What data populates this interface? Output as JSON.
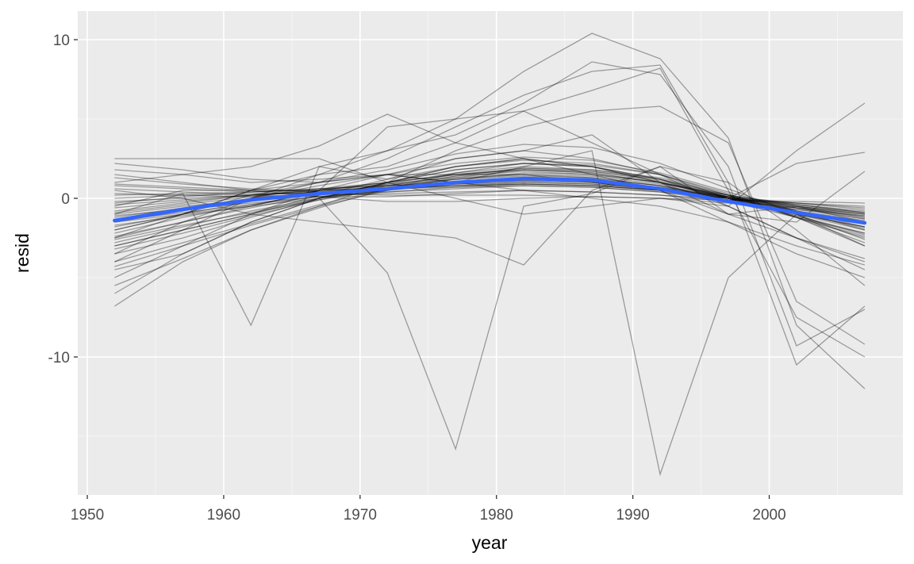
{
  "chart_data": {
    "type": "line",
    "title": "",
    "xlabel": "year",
    "ylabel": "resid",
    "xlim": [
      1949.3,
      2009.8
    ],
    "ylim": [
      -18.7,
      11.8
    ],
    "x_ticks": [
      1950,
      1960,
      1970,
      1980,
      1990,
      2000
    ],
    "y_ticks": [
      -10,
      0,
      10
    ],
    "grid": true,
    "legend": "none",
    "x": [
      1952,
      1957,
      1962,
      1967,
      1972,
      1977,
      1982,
      1987,
      1992,
      1997,
      2002,
      2007
    ],
    "series": [
      {
        "values": [
          -1.0,
          0.3,
          -8.0,
          2.0,
          1.2,
          2.5,
          3.0,
          4.0,
          1.0,
          -1.0,
          -0.5,
          -1.5
        ]
      },
      {
        "values": [
          -3.0,
          -2.0,
          -1.0,
          0.0,
          -4.7,
          -15.8,
          -0.5,
          0.3,
          2.0,
          1.0,
          -2.0,
          -5.5
        ]
      },
      {
        "values": [
          -0.5,
          0.5,
          0.5,
          1.0,
          1.5,
          1.0,
          2.0,
          3.0,
          -17.4,
          -5.0,
          -1.0,
          -3.0
        ]
      },
      {
        "values": [
          -4.0,
          -2.0,
          0.0,
          1.5,
          3.0,
          5.0,
          8.0,
          10.4,
          8.8,
          3.8,
          -8.0,
          -12.0
        ]
      },
      {
        "values": [
          -2.0,
          -1.0,
          0.5,
          2.0,
          3.0,
          4.0,
          6.0,
          8.6,
          7.8,
          2.0,
          -9.3,
          -7.0
        ]
      },
      {
        "values": [
          -3.5,
          -1.5,
          0.0,
          1.0,
          2.5,
          4.5,
          6.5,
          8.0,
          8.4,
          1.0,
          -10.5,
          -6.8
        ]
      },
      {
        "values": [
          -2.5,
          -1.0,
          0.5,
          1.5,
          2.0,
          3.5,
          5.5,
          6.8,
          8.2,
          0.5,
          -7.5,
          -10.0
        ]
      },
      {
        "values": [
          1.0,
          1.5,
          2.0,
          3.3,
          5.3,
          3.5,
          2.5,
          2.0,
          1.0,
          0.0,
          -1.0,
          -2.0
        ]
      },
      {
        "values": [
          -4.5,
          -3.5,
          -1.5,
          0.0,
          1.0,
          3.0,
          4.5,
          5.5,
          5.8,
          3.5,
          -6.5,
          -9.2
        ]
      },
      {
        "values": [
          2.5,
          2.5,
          2.5,
          2.5,
          1.0,
          0.0,
          -1.0,
          -0.5,
          0.0,
          -0.5,
          3.0,
          6.0
        ]
      },
      {
        "values": [
          -1.5,
          -1.0,
          -0.5,
          0.5,
          4.5,
          5.0,
          5.5,
          3.5,
          1.5,
          0.0,
          2.2,
          2.9
        ]
      },
      {
        "values": [
          0.5,
          0.0,
          -1.0,
          -1.5,
          -2.0,
          -2.5,
          -4.2,
          0.5,
          2.0,
          -1.0,
          -1.5,
          1.7
        ]
      },
      {
        "values": [
          -6.8,
          -4.0,
          -2.0,
          -0.5,
          1.0,
          2.0,
          2.5,
          2.0,
          1.0,
          -0.5,
          -2.5,
          -4.0
        ]
      },
      {
        "values": [
          -6.0,
          -3.5,
          -1.5,
          0.0,
          1.0,
          2.0,
          2.5,
          1.5,
          0.5,
          -1.5,
          -3.5,
          -5.0
        ]
      },
      {
        "values": [
          -5.0,
          -3.0,
          -1.0,
          0.5,
          1.5,
          2.5,
          3.0,
          2.5,
          1.5,
          -0.5,
          -2.5,
          -4.5
        ]
      },
      {
        "values": [
          2.2,
          1.8,
          1.2,
          1.0,
          1.5,
          1.0,
          0.5,
          0.0,
          -0.5,
          -1.5,
          -3.0,
          -4.2
        ]
      },
      {
        "values": [
          1.8,
          1.5,
          1.0,
          1.2,
          1.5,
          1.5,
          1.5,
          1.0,
          0.5,
          -1.0,
          -2.5,
          -3.8
        ]
      },
      {
        "values": [
          -2.5,
          -1.5,
          -0.5,
          0.5,
          1.0,
          1.8,
          2.2,
          2.0,
          1.2,
          -0.2,
          -1.2,
          -2.2
        ]
      },
      {
        "values": [
          -1.8,
          -1.0,
          -0.2,
          0.5,
          1.0,
          1.5,
          1.8,
          1.6,
          1.0,
          0.0,
          -1.0,
          -1.8
        ]
      },
      {
        "values": [
          -1.2,
          -0.6,
          0.0,
          0.4,
          0.8,
          1.2,
          1.4,
          1.3,
          0.8,
          0.0,
          -0.8,
          -1.4
        ]
      },
      {
        "values": [
          -0.8,
          -0.3,
          0.2,
          0.5,
          0.7,
          1.0,
          1.2,
          1.1,
          0.7,
          0.1,
          -0.5,
          -1.0
        ]
      },
      {
        "values": [
          -1.5,
          -0.8,
          0.0,
          0.8,
          1.5,
          2.2,
          2.6,
          2.4,
          1.6,
          0.4,
          -0.8,
          -2.0
        ]
      },
      {
        "values": [
          -3.0,
          -2.0,
          -1.0,
          0.2,
          1.2,
          2.0,
          2.4,
          2.2,
          1.5,
          0.2,
          -1.2,
          -2.8
        ]
      },
      {
        "values": [
          0.8,
          0.6,
          0.4,
          0.5,
          0.6,
          0.8,
          0.9,
          0.8,
          0.5,
          0.0,
          -0.4,
          -0.8
        ]
      },
      {
        "values": [
          -0.3,
          0.1,
          0.4,
          0.6,
          0.8,
          0.9,
          1.0,
          0.9,
          0.5,
          -0.1,
          -0.6,
          -1.2
        ]
      },
      {
        "values": [
          -2.2,
          -1.2,
          -0.4,
          0.3,
          0.8,
          1.4,
          1.7,
          1.5,
          1.0,
          0.1,
          -0.9,
          -1.9
        ]
      },
      {
        "values": [
          -4.0,
          -2.8,
          -1.6,
          -0.4,
          0.6,
          1.4,
          1.9,
          1.8,
          1.3,
          0.2,
          -1.2,
          -2.5
        ]
      },
      {
        "values": [
          0.3,
          0.2,
          0.1,
          0.2,
          0.3,
          0.4,
          0.5,
          0.4,
          0.2,
          -0.1,
          -0.3,
          -0.5
        ]
      },
      {
        "values": [
          -1.0,
          -0.5,
          -0.1,
          0.3,
          0.6,
          0.9,
          1.1,
          1.0,
          0.6,
          0.0,
          -0.6,
          -1.1
        ]
      },
      {
        "values": [
          1.3,
          0.9,
          0.6,
          0.4,
          0.4,
          0.6,
          0.8,
          0.7,
          0.4,
          -0.2,
          -0.9,
          -1.6
        ]
      },
      {
        "values": [
          -0.6,
          -0.2,
          0.2,
          0.5,
          0.9,
          1.3,
          1.5,
          1.4,
          0.9,
          0.2,
          -0.4,
          -0.9
        ]
      },
      {
        "values": [
          -3.5,
          -2.5,
          -1.2,
          0.0,
          1.0,
          1.8,
          2.2,
          2.0,
          1.2,
          0.0,
          -1.2,
          -2.4
        ]
      },
      {
        "values": [
          -2.0,
          -1.0,
          0.2,
          1.0,
          1.8,
          2.8,
          3.4,
          3.2,
          2.2,
          0.6,
          -1.0,
          -2.6
        ]
      },
      {
        "values": [
          0.0,
          0.2,
          0.3,
          0.3,
          0.2,
          0.2,
          0.2,
          0.1,
          0.0,
          -0.1,
          -0.2,
          -0.3
        ]
      },
      {
        "values": [
          -1.4,
          -0.9,
          -0.4,
          0.1,
          0.5,
          0.9,
          1.2,
          1.1,
          0.7,
          0.0,
          -0.7,
          -1.3
        ]
      },
      {
        "values": [
          0.6,
          0.4,
          0.2,
          0.1,
          0.1,
          0.3,
          0.5,
          0.4,
          0.2,
          -0.2,
          -0.6,
          -1.0
        ]
      },
      {
        "values": [
          -2.8,
          -1.8,
          -0.8,
          0.0,
          0.7,
          1.2,
          1.5,
          1.3,
          0.8,
          -0.1,
          -1.0,
          -1.8
        ]
      },
      {
        "values": [
          -0.2,
          0.0,
          0.2,
          0.4,
          0.6,
          0.7,
          0.8,
          0.7,
          0.4,
          0.0,
          -0.3,
          -0.6
        ]
      },
      {
        "values": [
          -1.7,
          -1.1,
          -0.5,
          0.0,
          0.5,
          1.0,
          1.3,
          1.2,
          0.8,
          0.1,
          -0.6,
          -1.3
        ]
      },
      {
        "values": [
          -5.5,
          -3.8,
          -2.0,
          -0.6,
          0.6,
          1.6,
          2.2,
          2.1,
          1.5,
          0.3,
          -1.2,
          -3.0
        ]
      },
      {
        "values": [
          1.5,
          1.0,
          0.5,
          0.1,
          -0.2,
          -0.2,
          0.0,
          0.1,
          0.0,
          -0.3,
          -0.7,
          -1.1
        ]
      },
      {
        "values": [
          -0.9,
          -0.4,
          0.1,
          0.6,
          1.0,
          1.5,
          1.8,
          1.6,
          1.0,
          0.2,
          -0.5,
          -1.2
        ]
      },
      {
        "values": [
          -2.4,
          -1.5,
          -0.6,
          0.2,
          0.9,
          1.6,
          2.0,
          1.8,
          1.2,
          0.2,
          -0.8,
          -1.8
        ]
      },
      {
        "values": [
          0.2,
          0.3,
          0.4,
          0.6,
          0.8,
          1.0,
          1.1,
          1.0,
          0.6,
          0.1,
          -0.4,
          -0.9
        ]
      },
      {
        "values": [
          -3.2,
          -2.2,
          -1.1,
          -0.1,
          0.8,
          1.5,
          1.9,
          1.7,
          1.1,
          0.0,
          -1.1,
          -2.2
        ]
      },
      {
        "values": [
          -1.1,
          -0.7,
          -0.3,
          0.1,
          0.4,
          0.7,
          0.9,
          0.8,
          0.5,
          0.0,
          -0.5,
          -0.9
        ]
      },
      {
        "values": [
          0.9,
          0.7,
          0.5,
          0.5,
          0.6,
          0.8,
          0.9,
          0.8,
          0.5,
          0.0,
          -0.5,
          -1.0
        ]
      },
      {
        "values": [
          -4.3,
          -3.0,
          -1.7,
          -0.5,
          0.5,
          1.3,
          1.8,
          1.7,
          1.2,
          0.1,
          -1.1,
          -2.3
        ]
      },
      {
        "values": [
          -0.4,
          -0.1,
          0.2,
          0.4,
          0.6,
          0.8,
          1.0,
          0.9,
          0.6,
          0.1,
          -0.3,
          -0.7
        ]
      },
      {
        "values": [
          -2.6,
          -1.7,
          -0.9,
          -0.1,
          0.6,
          1.2,
          1.6,
          1.5,
          1.0,
          0.1,
          -0.8,
          -1.6
        ]
      }
    ],
    "smooth": {
      "name": "",
      "color": "#3366ff",
      "x": [
        1952,
        1957,
        1962,
        1967,
        1972,
        1977,
        1982,
        1987,
        1992,
        1997,
        2002,
        2007
      ],
      "values": [
        -1.4,
        -0.7,
        -0.1,
        0.3,
        0.6,
        1.0,
        1.25,
        1.15,
        0.6,
        -0.2,
        -0.9,
        -1.55
      ]
    },
    "colors": {
      "panel": "#ebebeb",
      "grid_major": "#ffffff",
      "grid_minor": "#f5f5f5",
      "line": "#000000",
      "axis_text": "#4d4d4d",
      "title_text": "#000000"
    }
  }
}
